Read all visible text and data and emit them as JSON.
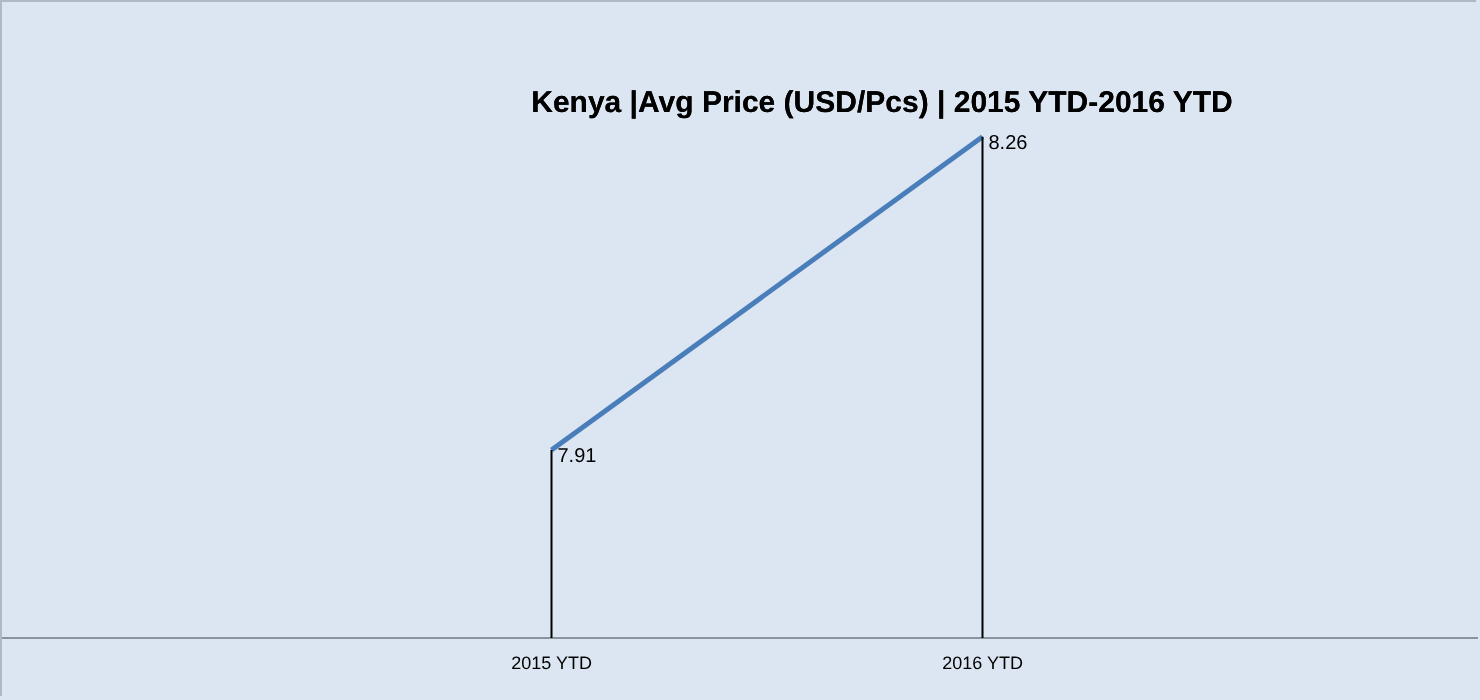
{
  "chart_data": {
    "type": "line",
    "title": "Kenya  |Avg Price (USD/Pcs) | 2015 YTD-2016 YTD",
    "categories": [
      "2015 YTD",
      "2016 YTD"
    ],
    "series": [
      {
        "color": "#4a7ebb",
        "values": [
          7.91,
          8.26
        ]
      }
    ],
    "data_labels": true,
    "marker": "none",
    "line_style": "solid"
  }
}
